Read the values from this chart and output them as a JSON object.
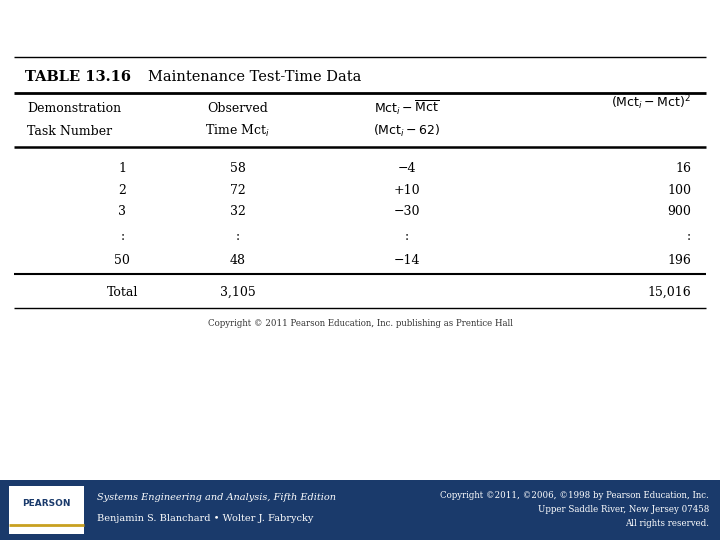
{
  "title_label": "TABLE 13.16",
  "title_text": "Maintenance Test-Time Data",
  "data_rows": [
    [
      "1",
      "58",
      "−4",
      "16"
    ],
    [
      "2",
      "72",
      "+10",
      "100"
    ],
    [
      "3",
      "32",
      "−30",
      "900"
    ],
    [
      ":",
      ":",
      ":",
      ":"
    ],
    [
      "50",
      "48",
      "−14",
      "196"
    ]
  ],
  "total_row": [
    "Total",
    "3,105",
    "",
    "15,016"
  ],
  "copyright_center": "Copyright © 2011 Pearson Education, Inc. publishing as Prentice Hall",
  "footer_left_line1": "Systems Engineering and Analysis, Fifth Edition",
  "footer_left_line2": "Benjamin S. Blanchard • Wolter J. Fabrycky",
  "footer_right_line1": "Copyright ©2011, ©2006, ©1998 by Pearson Education, Inc.",
  "footer_right_line2": "Upper Saddle River, New Jersey 07458",
  "footer_right_line3": "All rights reserved.",
  "footer_bg": "#1a3a6b",
  "bg_color": "#ffffff"
}
